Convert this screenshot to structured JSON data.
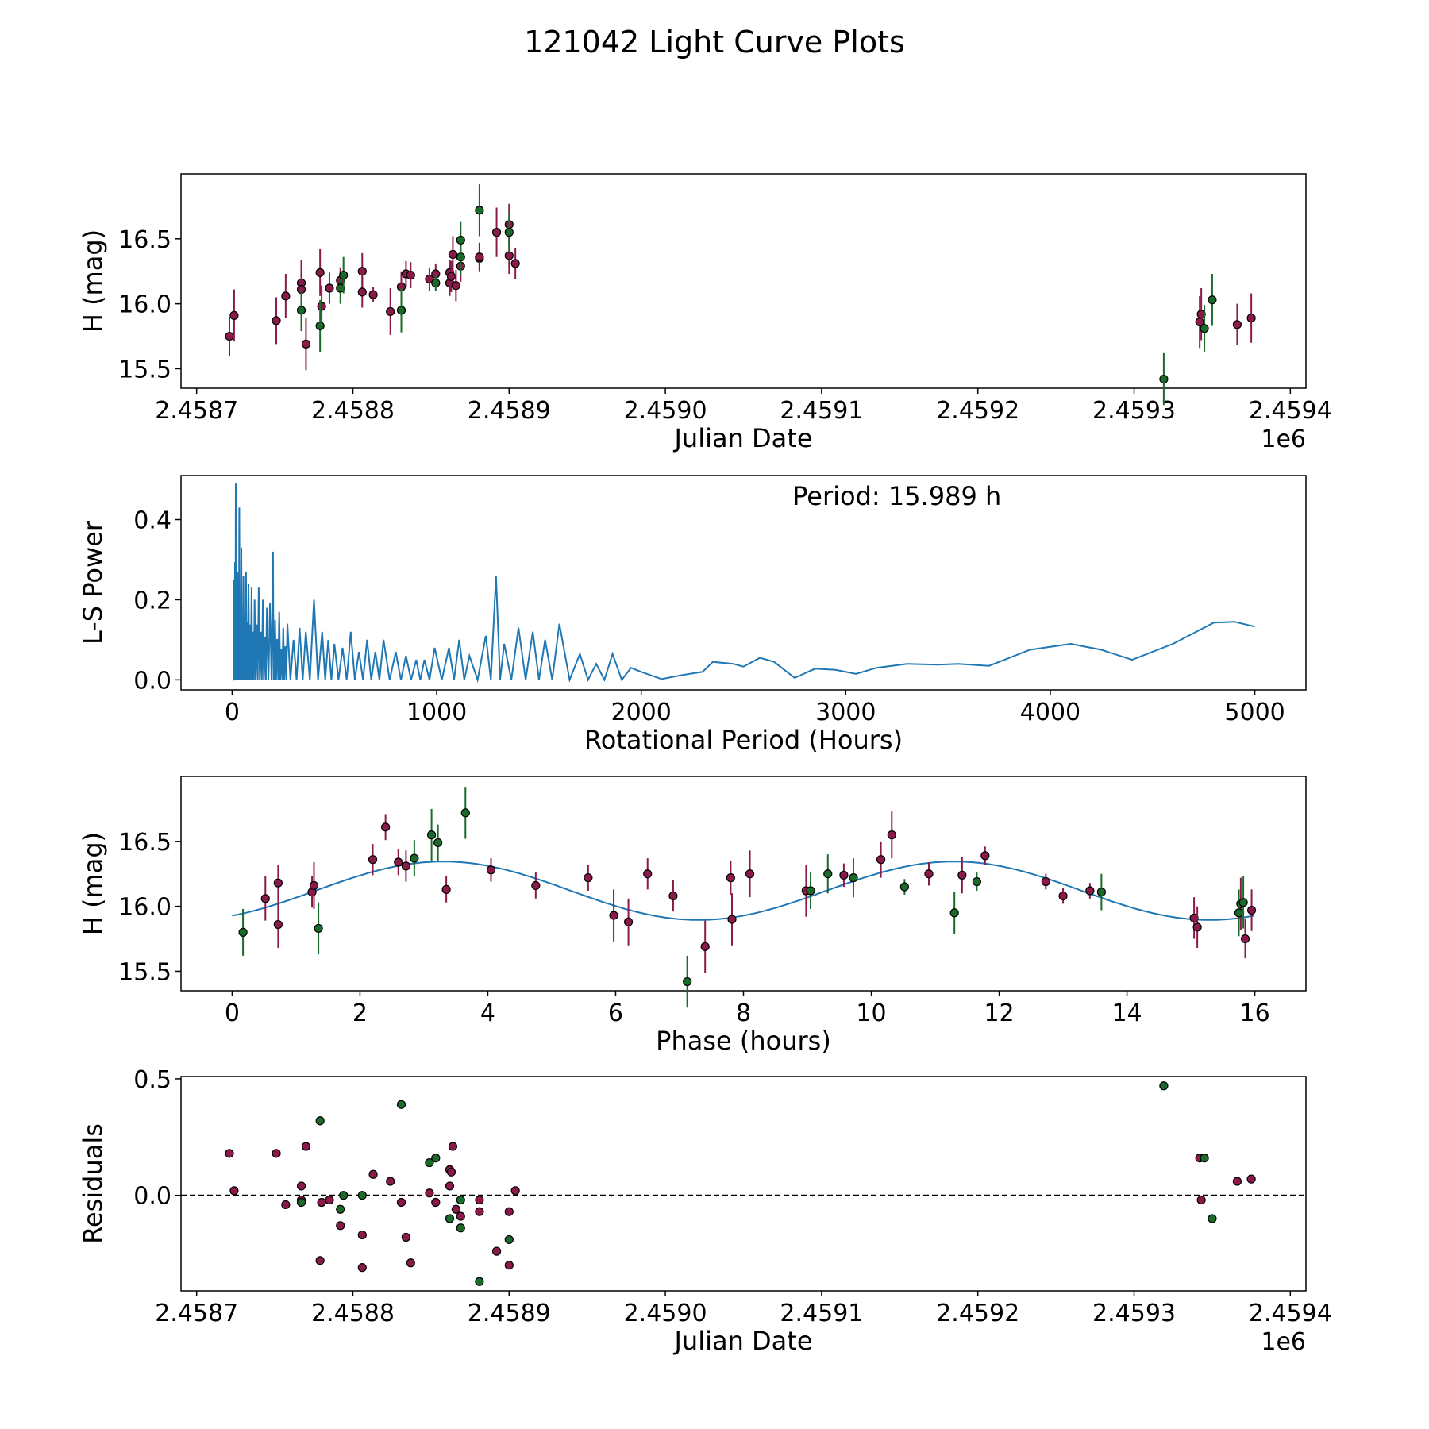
{
  "figure": {
    "title": "121042 Light Curve Plots"
  },
  "colors": {
    "r_band": "#8b1a4a",
    "g_band": "#1a6b2a",
    "curve": "#1f77b4",
    "edge": "#000000"
  },
  "chart_data": [
    {
      "id": "lightcurve",
      "type": "scatter",
      "xlabel": "Julian Date",
      "ylabel": "H (mag)",
      "x_offset_label": "1e6",
      "xlim": [
        2.45869,
        2.45941
      ],
      "ylim": [
        15.35,
        17.0
      ],
      "xticks": [
        2.4587,
        2.4588,
        2.4589,
        2.459,
        2.4591,
        2.4592,
        2.4593,
        2.4594
      ],
      "xtick_labels": [
        "2.4587",
        "2.4588",
        "2.4589",
        "2.4590",
        "2.4591",
        "2.4592",
        "2.4593",
        "2.4594"
      ],
      "yticks": [
        15.5,
        16.0,
        16.5
      ],
      "ytick_labels": [
        "15.5",
        "16.0",
        "16.5"
      ],
      "series": [
        {
          "name": "r",
          "color_key": "r_band",
          "x": [
            2.458721,
            2.458724,
            2.458751,
            2.458757,
            2.458767,
            2.458767,
            2.45877,
            2.458779,
            2.45878,
            2.458785,
            2.458792,
            2.458806,
            2.458806,
            2.458813,
            2.458824,
            2.458831,
            2.458834,
            2.458837,
            2.458849,
            2.458853,
            2.458862,
            2.458862,
            2.458863,
            2.458864,
            2.458866,
            2.458869,
            2.458881,
            2.458881,
            2.458892,
            2.4589,
            2.4589,
            2.458904,
            2.459342,
            2.459343,
            2.459366,
            2.459375
          ],
          "y": [
            15.75,
            15.91,
            15.87,
            16.06,
            16.16,
            16.11,
            15.69,
            16.24,
            15.98,
            16.12,
            16.18,
            16.25,
            16.09,
            16.07,
            15.94,
            16.13,
            16.23,
            16.22,
            16.19,
            16.23,
            16.16,
            16.24,
            16.21,
            16.38,
            16.14,
            16.29,
            16.35,
            16.36,
            16.55,
            16.37,
            16.61,
            16.31,
            15.86,
            15.92,
            15.84,
            15.89
          ],
          "err": [
            0.15,
            0.2,
            0.18,
            0.17,
            0.18,
            0.14,
            0.2,
            0.18,
            0.16,
            0.12,
            0.1,
            0.14,
            0.12,
            0.06,
            0.18,
            0.12,
            0.1,
            0.1,
            0.09,
            0.08,
            0.1,
            0.1,
            0.12,
            0.14,
            0.12,
            0.12,
            0.09,
            0.11,
            0.19,
            0.14,
            0.16,
            0.12,
            0.2,
            0.2,
            0.16,
            0.19
          ]
        },
        {
          "name": "g",
          "color_key": "g_band",
          "x": [
            2.458767,
            2.458779,
            2.458792,
            2.458794,
            2.458831,
            2.458853,
            2.458869,
            2.458869,
            2.458881,
            2.4589,
            2.459319,
            2.459345,
            2.45935
          ],
          "y": [
            15.95,
            15.83,
            16.12,
            16.22,
            15.95,
            16.16,
            16.36,
            16.49,
            16.72,
            16.55,
            15.42,
            15.81,
            16.03
          ],
          "err": [
            0.16,
            0.2,
            0.12,
            0.14,
            0.17,
            0.06,
            0.14,
            0.14,
            0.2,
            0.15,
            0.2,
            0.18,
            0.2
          ]
        }
      ]
    },
    {
      "id": "periodogram",
      "type": "line",
      "xlabel": "Rotational Period (Hours)",
      "ylabel": "L-S Power",
      "annotation": "Period: 15.989 h",
      "xlim": [
        -250,
        5250
      ],
      "ylim": [
        -0.025,
        0.51
      ],
      "xticks": [
        0,
        1000,
        2000,
        3000,
        4000,
        5000
      ],
      "xtick_labels": [
        "0",
        "1000",
        "2000",
        "3000",
        "4000",
        "5000"
      ],
      "yticks": [
        0.0,
        0.2,
        0.4
      ],
      "ytick_labels": [
        "0.0",
        "0.2",
        "0.4"
      ],
      "broad_envelope": {
        "x": [
          2000,
          2100,
          2200,
          2300,
          2350,
          2450,
          2500,
          2580,
          2650,
          2750,
          2850,
          2950,
          3050,
          3150,
          3300,
          3450,
          3550,
          3700,
          3900,
          4100,
          4250,
          4400,
          4600,
          4800,
          4900,
          5000
        ],
        "y": [
          0.02,
          0.002,
          0.012,
          0.02,
          0.045,
          0.04,
          0.033,
          0.055,
          0.045,
          0.005,
          0.028,
          0.025,
          0.015,
          0.03,
          0.04,
          0.038,
          0.04,
          0.035,
          0.075,
          0.09,
          0.075,
          0.05,
          0.09,
          0.143,
          0.145,
          0.133
        ]
      },
      "peaks": {
        "x": [
          10,
          18,
          26,
          35,
          45,
          55,
          68,
          80,
          95,
          110,
          130,
          150,
          170,
          200,
          210,
          230,
          250,
          270,
          300,
          330,
          360,
          400,
          440,
          470,
          500,
          540,
          580,
          620,
          660,
          700,
          740,
          800,
          850,
          900,
          940,
          990,
          1060,
          1110,
          1160,
          1240,
          1290,
          1330,
          1400,
          1470,
          1530,
          1600,
          1700,
          1780,
          1860,
          1950
        ],
        "y": [
          0.25,
          0.49,
          0.27,
          0.43,
          0.33,
          0.26,
          0.27,
          0.24,
          0.23,
          0.2,
          0.23,
          0.2,
          0.18,
          0.32,
          0.15,
          0.17,
          0.13,
          0.14,
          0.1,
          0.13,
          0.12,
          0.2,
          0.12,
          0.1,
          0.09,
          0.08,
          0.12,
          0.07,
          0.1,
          0.07,
          0.1,
          0.07,
          0.06,
          0.05,
          0.05,
          0.08,
          0.08,
          0.1,
          0.06,
          0.11,
          0.26,
          0.09,
          0.13,
          0.12,
          0.1,
          0.14,
          0.065,
          0.04,
          0.065,
          0.03
        ]
      }
    },
    {
      "id": "phased",
      "type": "scatter",
      "xlabel": "Phase (hours)",
      "ylabel": "H (mag)",
      "xlim": [
        -0.8,
        16.8
      ],
      "ylim": [
        15.35,
        17.0
      ],
      "xticks": [
        0,
        2,
        4,
        6,
        8,
        10,
        12,
        14,
        16
      ],
      "xtick_labels": [
        "0",
        "2",
        "4",
        "6",
        "8",
        "10",
        "12",
        "14",
        "16"
      ],
      "yticks": [
        15.5,
        16.0,
        16.5
      ],
      "ytick_labels": [
        "15.5",
        "16.0",
        "16.5"
      ],
      "model": {
        "mean": 16.12,
        "amplitude": 0.225,
        "half_period": 7.9945,
        "phase_peak": 3.3,
        "x_range": [
          0,
          15.989
        ]
      },
      "series": [
        {
          "name": "r",
          "color_key": "r_band",
          "x": [
            0.52,
            0.72,
            0.72,
            1.25,
            1.28,
            2.2,
            2.4,
            2.6,
            2.72,
            3.35,
            4.05,
            4.75,
            5.57,
            5.97,
            6.2,
            6.5,
            6.9,
            7.4,
            7.8,
            7.82,
            8.1,
            8.98,
            9.57,
            10.15,
            10.32,
            10.9,
            11.42,
            11.78,
            12.73,
            13,
            13.42,
            15.05,
            15.1,
            15.78,
            15.85,
            15.95
          ],
          "y": [
            16.06,
            16.18,
            15.86,
            16.11,
            16.16,
            16.36,
            16.61,
            16.34,
            16.31,
            16.13,
            16.28,
            16.16,
            16.22,
            15.93,
            15.88,
            16.25,
            16.08,
            15.69,
            16.22,
            15.9,
            16.25,
            16.12,
            16.24,
            16.36,
            16.55,
            16.25,
            16.24,
            16.39,
            16.19,
            16.08,
            16.12,
            15.91,
            15.84,
            16.02,
            15.75,
            15.97
          ],
          "err": [
            0.17,
            0.14,
            0.18,
            0.12,
            0.18,
            0.12,
            0.1,
            0.1,
            0.12,
            0.1,
            0.09,
            0.1,
            0.1,
            0.2,
            0.18,
            0.12,
            0.12,
            0.2,
            0.13,
            0.2,
            0.18,
            0.2,
            0.09,
            0.14,
            0.18,
            0.09,
            0.14,
            0.07,
            0.06,
            0.06,
            0.06,
            0.16,
            0.16,
            0.2,
            0.15,
            0.16
          ]
        },
        {
          "name": "g",
          "color_key": "g_band",
          "x": [
            0.17,
            1.35,
            2.85,
            3.12,
            3.22,
            3.65,
            7.12,
            9.05,
            9.32,
            9.72,
            10.52,
            11.3,
            11.65,
            13.6,
            15.75,
            15.82
          ],
          "y": [
            15.8,
            15.83,
            16.37,
            16.55,
            16.49,
            16.72,
            15.42,
            16.12,
            16.25,
            16.22,
            16.15,
            15.95,
            16.19,
            16.11,
            15.95,
            16.03
          ],
          "err": [
            0.18,
            0.2,
            0.14,
            0.2,
            0.14,
            0.2,
            0.2,
            0.14,
            0.15,
            0.15,
            0.06,
            0.16,
            0.07,
            0.14,
            0.18,
            0.2
          ]
        }
      ]
    },
    {
      "id": "residuals",
      "type": "scatter",
      "xlabel": "Julian Date",
      "ylabel": "Residuals",
      "x_offset_label": "1e6",
      "xlim": [
        2.45869,
        2.45941
      ],
      "ylim": [
        -0.41,
        0.51
      ],
      "xticks": [
        2.4587,
        2.4588,
        2.4589,
        2.459,
        2.4591,
        2.4592,
        2.4593,
        2.4594
      ],
      "xtick_labels": [
        "2.4587",
        "2.4588",
        "2.4589",
        "2.4590",
        "2.4591",
        "2.4592",
        "2.4593",
        "2.4594"
      ],
      "yticks": [
        0.0,
        0.5
      ],
      "ytick_labels": [
        "0.0",
        "0.5"
      ],
      "zero_line": 0.0,
      "series": [
        {
          "name": "r",
          "color_key": "r_band",
          "x": [
            2.458721,
            2.458724,
            2.458751,
            2.458757,
            2.458767,
            2.458767,
            2.45877,
            2.458779,
            2.45878,
            2.458785,
            2.458792,
            2.458806,
            2.458806,
            2.458813,
            2.458824,
            2.458831,
            2.458834,
            2.458837,
            2.458849,
            2.458853,
            2.458862,
            2.458862,
            2.458863,
            2.458864,
            2.458866,
            2.458869,
            2.458881,
            2.458881,
            2.458892,
            2.4589,
            2.4589,
            2.458904,
            2.459342,
            2.459343,
            2.459366,
            2.459375
          ],
          "y": [
            0.18,
            0.02,
            0.18,
            -0.04,
            0.04,
            -0.02,
            0.21,
            -0.28,
            -0.03,
            -0.02,
            -0.13,
            -0.31,
            -0.17,
            0.09,
            0.06,
            -0.03,
            -0.18,
            -0.29,
            0.01,
            -0.03,
            0.04,
            0.11,
            0.1,
            0.21,
            -0.06,
            -0.09,
            -0.07,
            -0.02,
            -0.24,
            -0.07,
            -0.3,
            0.02,
            0.16,
            -0.02,
            0.06,
            0.07
          ]
        },
        {
          "name": "g",
          "color_key": "g_band",
          "x": [
            2.458767,
            2.458779,
            2.458792,
            2.458794,
            2.458806,
            2.458831,
            2.458849,
            2.458853,
            2.458862,
            2.458869,
            2.458869,
            2.458881,
            2.4589,
            2.459319,
            2.459345,
            2.45935
          ],
          "y": [
            -0.03,
            0.32,
            -0.06,
            0.0,
            0.0,
            0.39,
            0.14,
            0.16,
            -0.1,
            -0.02,
            -0.14,
            -0.37,
            -0.19,
            0.47,
            0.16,
            -0.1
          ]
        }
      ]
    }
  ]
}
